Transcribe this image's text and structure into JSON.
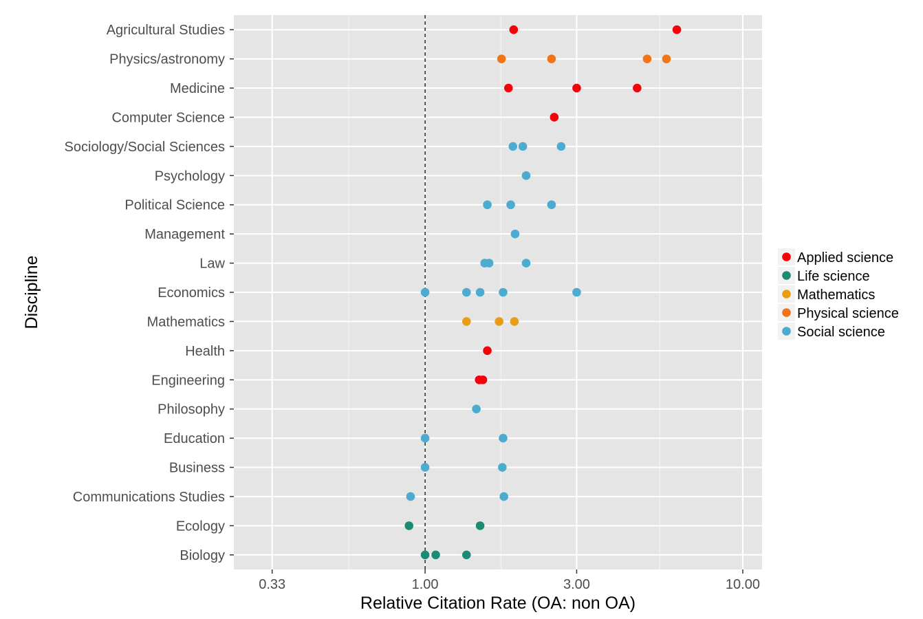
{
  "chart_data": {
    "type": "scatter",
    "xlabel": "Relative Citation Rate (OA: non OA)",
    "ylabel": "Discipline",
    "xscale": "log",
    "xlim": [
      0.25,
      11.5
    ],
    "xticks": [
      0.33,
      1.0,
      3.0,
      10.0
    ],
    "xtick_labels": [
      "0.33",
      "1.00",
      "3.00",
      "10.00"
    ],
    "reference_line": 1.0,
    "categories": [
      "Agricultural Studies",
      "Physics/astronomy",
      "Medicine",
      "Computer Science",
      "Sociology/Social Sciences",
      "Psychology",
      "Political Science",
      "Management",
      "Law",
      "Economics",
      "Mathematics",
      "Health",
      "Engineering",
      "Philosophy",
      "Education",
      "Business",
      "Communications Studies",
      "Ecology",
      "Biology"
    ],
    "legend_position": "right",
    "series": [
      {
        "name": "Applied science",
        "color": "#f8000a",
        "points": [
          [
            "Agricultural Studies",
            1.9
          ],
          [
            "Agricultural Studies",
            6.2
          ],
          [
            "Medicine",
            1.83
          ],
          [
            "Medicine",
            3.0
          ],
          [
            "Medicine",
            4.65
          ],
          [
            "Computer Science",
            2.55
          ],
          [
            "Health",
            1.57
          ],
          [
            "Engineering",
            1.48
          ],
          [
            "Engineering",
            1.52
          ]
        ]
      },
      {
        "name": "Life science",
        "color": "#1b8c74",
        "points": [
          [
            "Ecology",
            0.89
          ],
          [
            "Ecology",
            1.49
          ],
          [
            "Biology",
            1.0
          ],
          [
            "Biology",
            1.08
          ],
          [
            "Biology",
            1.35
          ]
        ]
      },
      {
        "name": "Mathematics",
        "color": "#e89e14",
        "points": [
          [
            "Mathematics",
            1.35
          ],
          [
            "Mathematics",
            1.71
          ],
          [
            "Mathematics",
            1.91
          ]
        ]
      },
      {
        "name": "Physical science",
        "color": "#f37416",
        "points": [
          [
            "Physics/astronomy",
            1.74
          ],
          [
            "Physics/astronomy",
            2.5
          ],
          [
            "Physics/astronomy",
            5.0
          ],
          [
            "Physics/astronomy",
            5.75
          ]
        ]
      },
      {
        "name": "Social science",
        "color": "#4bacd0",
        "points": [
          [
            "Sociology/Social Sciences",
            1.89
          ],
          [
            "Sociology/Social Sciences",
            2.03
          ],
          [
            "Sociology/Social Sciences",
            2.68
          ],
          [
            "Psychology",
            2.08
          ],
          [
            "Political Science",
            1.57
          ],
          [
            "Political Science",
            1.86
          ],
          [
            "Political Science",
            2.5
          ],
          [
            "Management",
            1.92
          ],
          [
            "Law",
            1.54
          ],
          [
            "Law",
            1.59
          ],
          [
            "Law",
            2.08
          ],
          [
            "Economics",
            1.0
          ],
          [
            "Economics",
            1.35
          ],
          [
            "Economics",
            1.49
          ],
          [
            "Economics",
            1.76
          ],
          [
            "Economics",
            3.0
          ],
          [
            "Philosophy",
            1.45
          ],
          [
            "Education",
            1.0
          ],
          [
            "Education",
            1.76
          ],
          [
            "Business",
            1.0
          ],
          [
            "Business",
            1.75
          ],
          [
            "Communications Studies",
            0.9
          ],
          [
            "Communications Studies",
            1.77
          ]
        ]
      }
    ]
  }
}
